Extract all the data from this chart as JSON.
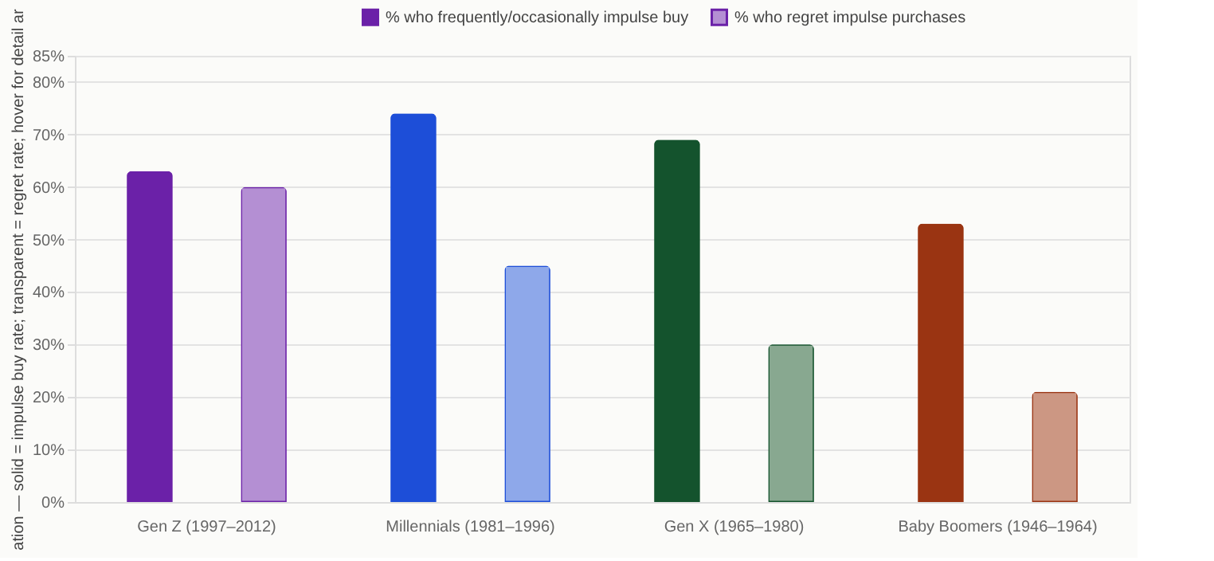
{
  "chart_data": {
    "type": "bar",
    "ylabel": "ation — solid = impulse buy rate; transparent = regret rate; hover for detail ar",
    "categories": [
      "Gen Z (1997–2012)",
      "Millennials (1981–1996)",
      "Gen X (1965–1980)",
      "Baby Boomers (1946–1964)"
    ],
    "series": [
      {
        "name": "% who frequently/occasionally impulse buy",
        "color": "#6b21a8",
        "colors": [
          "#6b21a8",
          "#1d4ed8",
          "#14532d",
          "#9a3412"
        ],
        "values": [
          63,
          74,
          69,
          53
        ]
      },
      {
        "name": "% who regret impulse purchases",
        "color": "#b48fd3",
        "colors": [
          "#b48fd3",
          "#8ea8ea",
          "#88a890",
          "#cc9783"
        ],
        "values": [
          60,
          45,
          30,
          21
        ]
      }
    ],
    "ylim": [
      0,
      85
    ],
    "yticks": [
      {
        "value": 0,
        "label": "0%"
      },
      {
        "value": 10,
        "label": "10%"
      },
      {
        "value": 20,
        "label": "20%"
      },
      {
        "value": 30,
        "label": "30%"
      },
      {
        "value": 40,
        "label": "40%"
      },
      {
        "value": 50,
        "label": "50%"
      },
      {
        "value": 60,
        "label": "60%"
      },
      {
        "value": 70,
        "label": "70%"
      },
      {
        "value": 80,
        "label": "80%"
      },
      {
        "value": 85,
        "label": "85%"
      }
    ],
    "grid": "y",
    "legend": "top"
  }
}
